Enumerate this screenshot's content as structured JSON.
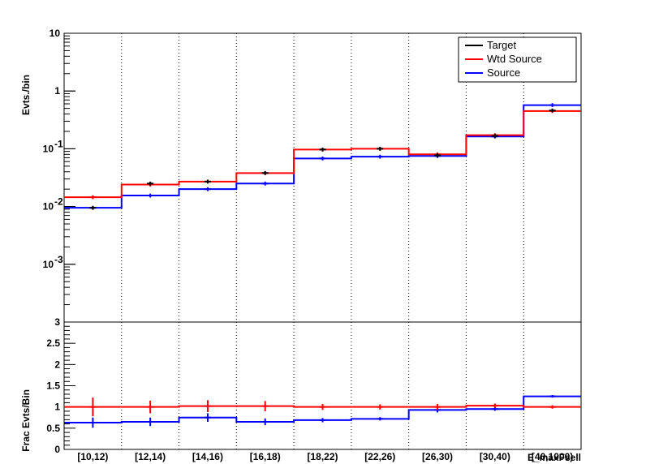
{
  "chart_data": [
    {
      "type": "step-histogram",
      "panel": "top",
      "ylabel": "Evts./bin",
      "yscale": "log",
      "ylim": [
        0.0001,
        10
      ],
      "yticks": [
        {
          "value": 10,
          "label": "10"
        },
        {
          "value": 1,
          "label": "1"
        },
        {
          "value": 0.1,
          "label": "10",
          "exp": "-1"
        },
        {
          "value": 0.01,
          "label": "10",
          "exp": "-2"
        },
        {
          "value": 0.001,
          "label": "10",
          "exp": "-3"
        }
      ],
      "categories": [
        "[10,12)",
        "[12,14)",
        "[14,16)",
        "[16,18)",
        "[18,22)",
        "[22,26)",
        "[26,30)",
        "[30,40)",
        "[40,1000)"
      ],
      "legend": {
        "placement": "top-right",
        "entries": [
          "Target",
          "Wtd Source",
          "Source"
        ]
      },
      "series": [
        {
          "name": "Target",
          "color": "#000000",
          "values": [
            0.0095,
            0.025,
            0.027,
            0.038,
            0.097,
            0.1,
            0.077,
            0.167,
            0.46
          ],
          "errors": true
        },
        {
          "name": "Wtd Source",
          "color": "#ff0000",
          "values": [
            0.0145,
            0.024,
            0.027,
            0.038,
            0.097,
            0.1,
            0.08,
            0.172,
            0.45
          ]
        },
        {
          "name": "Source",
          "color": "#0000ff",
          "values": [
            0.0095,
            0.0155,
            0.02,
            0.025,
            0.068,
            0.073,
            0.075,
            0.163,
            0.57
          ],
          "errors": true
        }
      ],
      "grid": "vertical-dotted"
    },
    {
      "type": "step-histogram",
      "panel": "bottom",
      "ylabel": "Frac Evts/Bin",
      "xlabel": "E_maxFsell",
      "ylim": [
        0,
        3
      ],
      "yticks": [
        {
          "value": 0,
          "label": "0"
        },
        {
          "value": 0.5,
          "label": "0.5"
        },
        {
          "value": 1,
          "label": "1"
        },
        {
          "value": 1.5,
          "label": "1.5"
        },
        {
          "value": 2,
          "label": "2"
        },
        {
          "value": 2.5,
          "label": "2.5"
        },
        {
          "value": 3,
          "label": "3"
        }
      ],
      "categories": [
        "[10,12)",
        "[12,14)",
        "[14,16)",
        "[16,18)",
        "[18,22)",
        "[22,26)",
        "[26,30)",
        "[30,40)",
        "[40,1000)"
      ],
      "series": [
        {
          "name": "Wtd Source",
          "color": "#ff0000",
          "values": [
            1.0,
            1.0,
            1.02,
            1.02,
            1.0,
            1.0,
            1.0,
            1.03,
            1.0
          ],
          "errors": [
            0.22,
            0.15,
            0.14,
            0.12,
            0.07,
            0.06,
            0.07,
            0.05,
            0.04
          ]
        },
        {
          "name": "Source",
          "color": "#0000ff",
          "values": [
            0.63,
            0.65,
            0.75,
            0.65,
            0.69,
            0.72,
            0.93,
            0.95,
            1.25
          ],
          "errors": [
            0.12,
            0.1,
            0.1,
            0.08,
            0.05,
            0.04,
            0.06,
            0.04,
            0.03
          ]
        }
      ],
      "grid": "vertical-dotted"
    }
  ]
}
